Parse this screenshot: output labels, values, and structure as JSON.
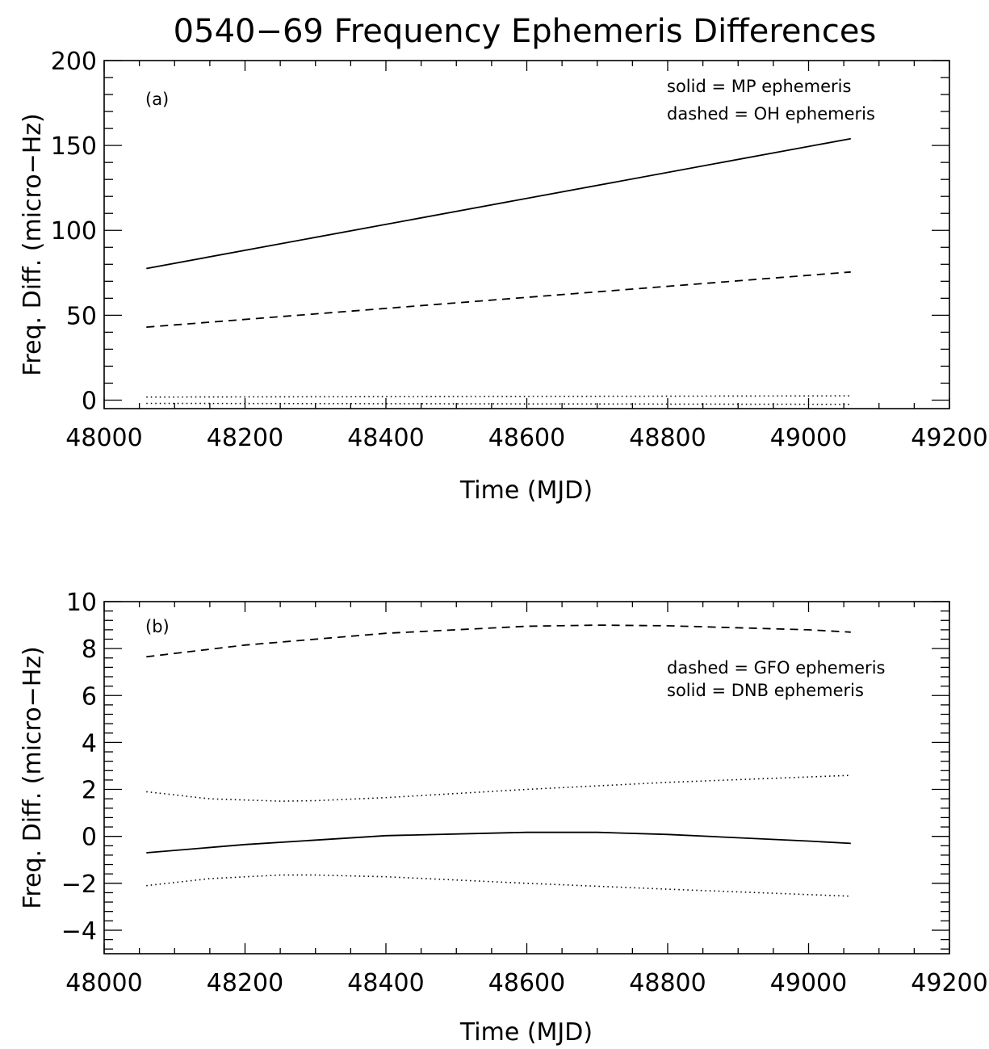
{
  "title": "0540−69 Frequency Ephemeris Differences",
  "chart_data": [
    {
      "type": "line",
      "panel_label": "(a)",
      "xlabel": "Time (MJD)",
      "ylabel": "Freq. Diff. (micro−Hz)",
      "xlim": [
        48000,
        49200
      ],
      "ylim": [
        -5,
        200
      ],
      "xticks": [
        48000,
        48200,
        48400,
        48600,
        48800,
        49000,
        49200
      ],
      "xtick_labels": [
        "48000",
        "48200",
        "48400",
        "48600",
        "48800",
        "49000",
        "49200"
      ],
      "yticks": [
        0,
        50,
        100,
        150,
        200
      ],
      "ytick_labels": [
        "0",
        "50",
        "100",
        "150",
        "200"
      ],
      "grid": false,
      "annotations": [
        "solid = MP ephemeris",
        "dashed = OH ephemeris"
      ],
      "series": [
        {
          "style": "solid",
          "x": [
            48060,
            49060
          ],
          "y": [
            77.5,
            154
          ]
        },
        {
          "style": "dashed",
          "x": [
            48060,
            49060
          ],
          "y": [
            43,
            75.5
          ]
        },
        {
          "style": "dotted",
          "x": [
            48060,
            49060
          ],
          "y": [
            1.8,
            2.5
          ]
        },
        {
          "style": "dotted",
          "x": [
            48060,
            49060
          ],
          "y": [
            -1.9,
            -2.5
          ]
        }
      ]
    },
    {
      "type": "line",
      "panel_label": "(b)",
      "xlabel": "Time (MJD)",
      "ylabel": "Freq. Diff. (micro−Hz)",
      "xlim": [
        48000,
        49200
      ],
      "ylim": [
        -5,
        10
      ],
      "xticks": [
        48000,
        48200,
        48400,
        48600,
        48800,
        49000,
        49200
      ],
      "xtick_labels": [
        "48000",
        "48200",
        "48400",
        "48600",
        "48800",
        "49000",
        "49200"
      ],
      "yticks": [
        -4,
        -2,
        0,
        2,
        4,
        6,
        8,
        10
      ],
      "ytick_labels": [
        "−4",
        "−2",
        "0",
        "2",
        "4",
        "6",
        "8",
        "10"
      ],
      "grid": false,
      "annotations": [
        "dashed = GFO ephemeris",
        "solid = DNB ephemeris"
      ],
      "series": [
        {
          "style": "dashed",
          "x": [
            48060,
            48200,
            48400,
            48600,
            48700,
            48800,
            49000,
            49060
          ],
          "y": [
            7.65,
            8.15,
            8.65,
            8.95,
            9.0,
            8.97,
            8.8,
            8.7
          ]
        },
        {
          "style": "dotted",
          "x": [
            48060,
            48150,
            48250,
            48300,
            48400,
            48600,
            48800,
            49060
          ],
          "y": [
            1.9,
            1.6,
            1.5,
            1.52,
            1.65,
            2.0,
            2.3,
            2.6
          ]
        },
        {
          "style": "solid",
          "x": [
            48060,
            48200,
            48400,
            48600,
            48700,
            48800,
            49000,
            49060
          ],
          "y": [
            -0.7,
            -0.35,
            0.03,
            0.17,
            0.17,
            0.08,
            -0.2,
            -0.3
          ]
        },
        {
          "style": "dotted",
          "x": [
            48060,
            48150,
            48250,
            48300,
            48400,
            48600,
            48800,
            49060
          ],
          "y": [
            -2.1,
            -1.8,
            -1.65,
            -1.65,
            -1.72,
            -2.0,
            -2.25,
            -2.55
          ]
        }
      ]
    }
  ]
}
